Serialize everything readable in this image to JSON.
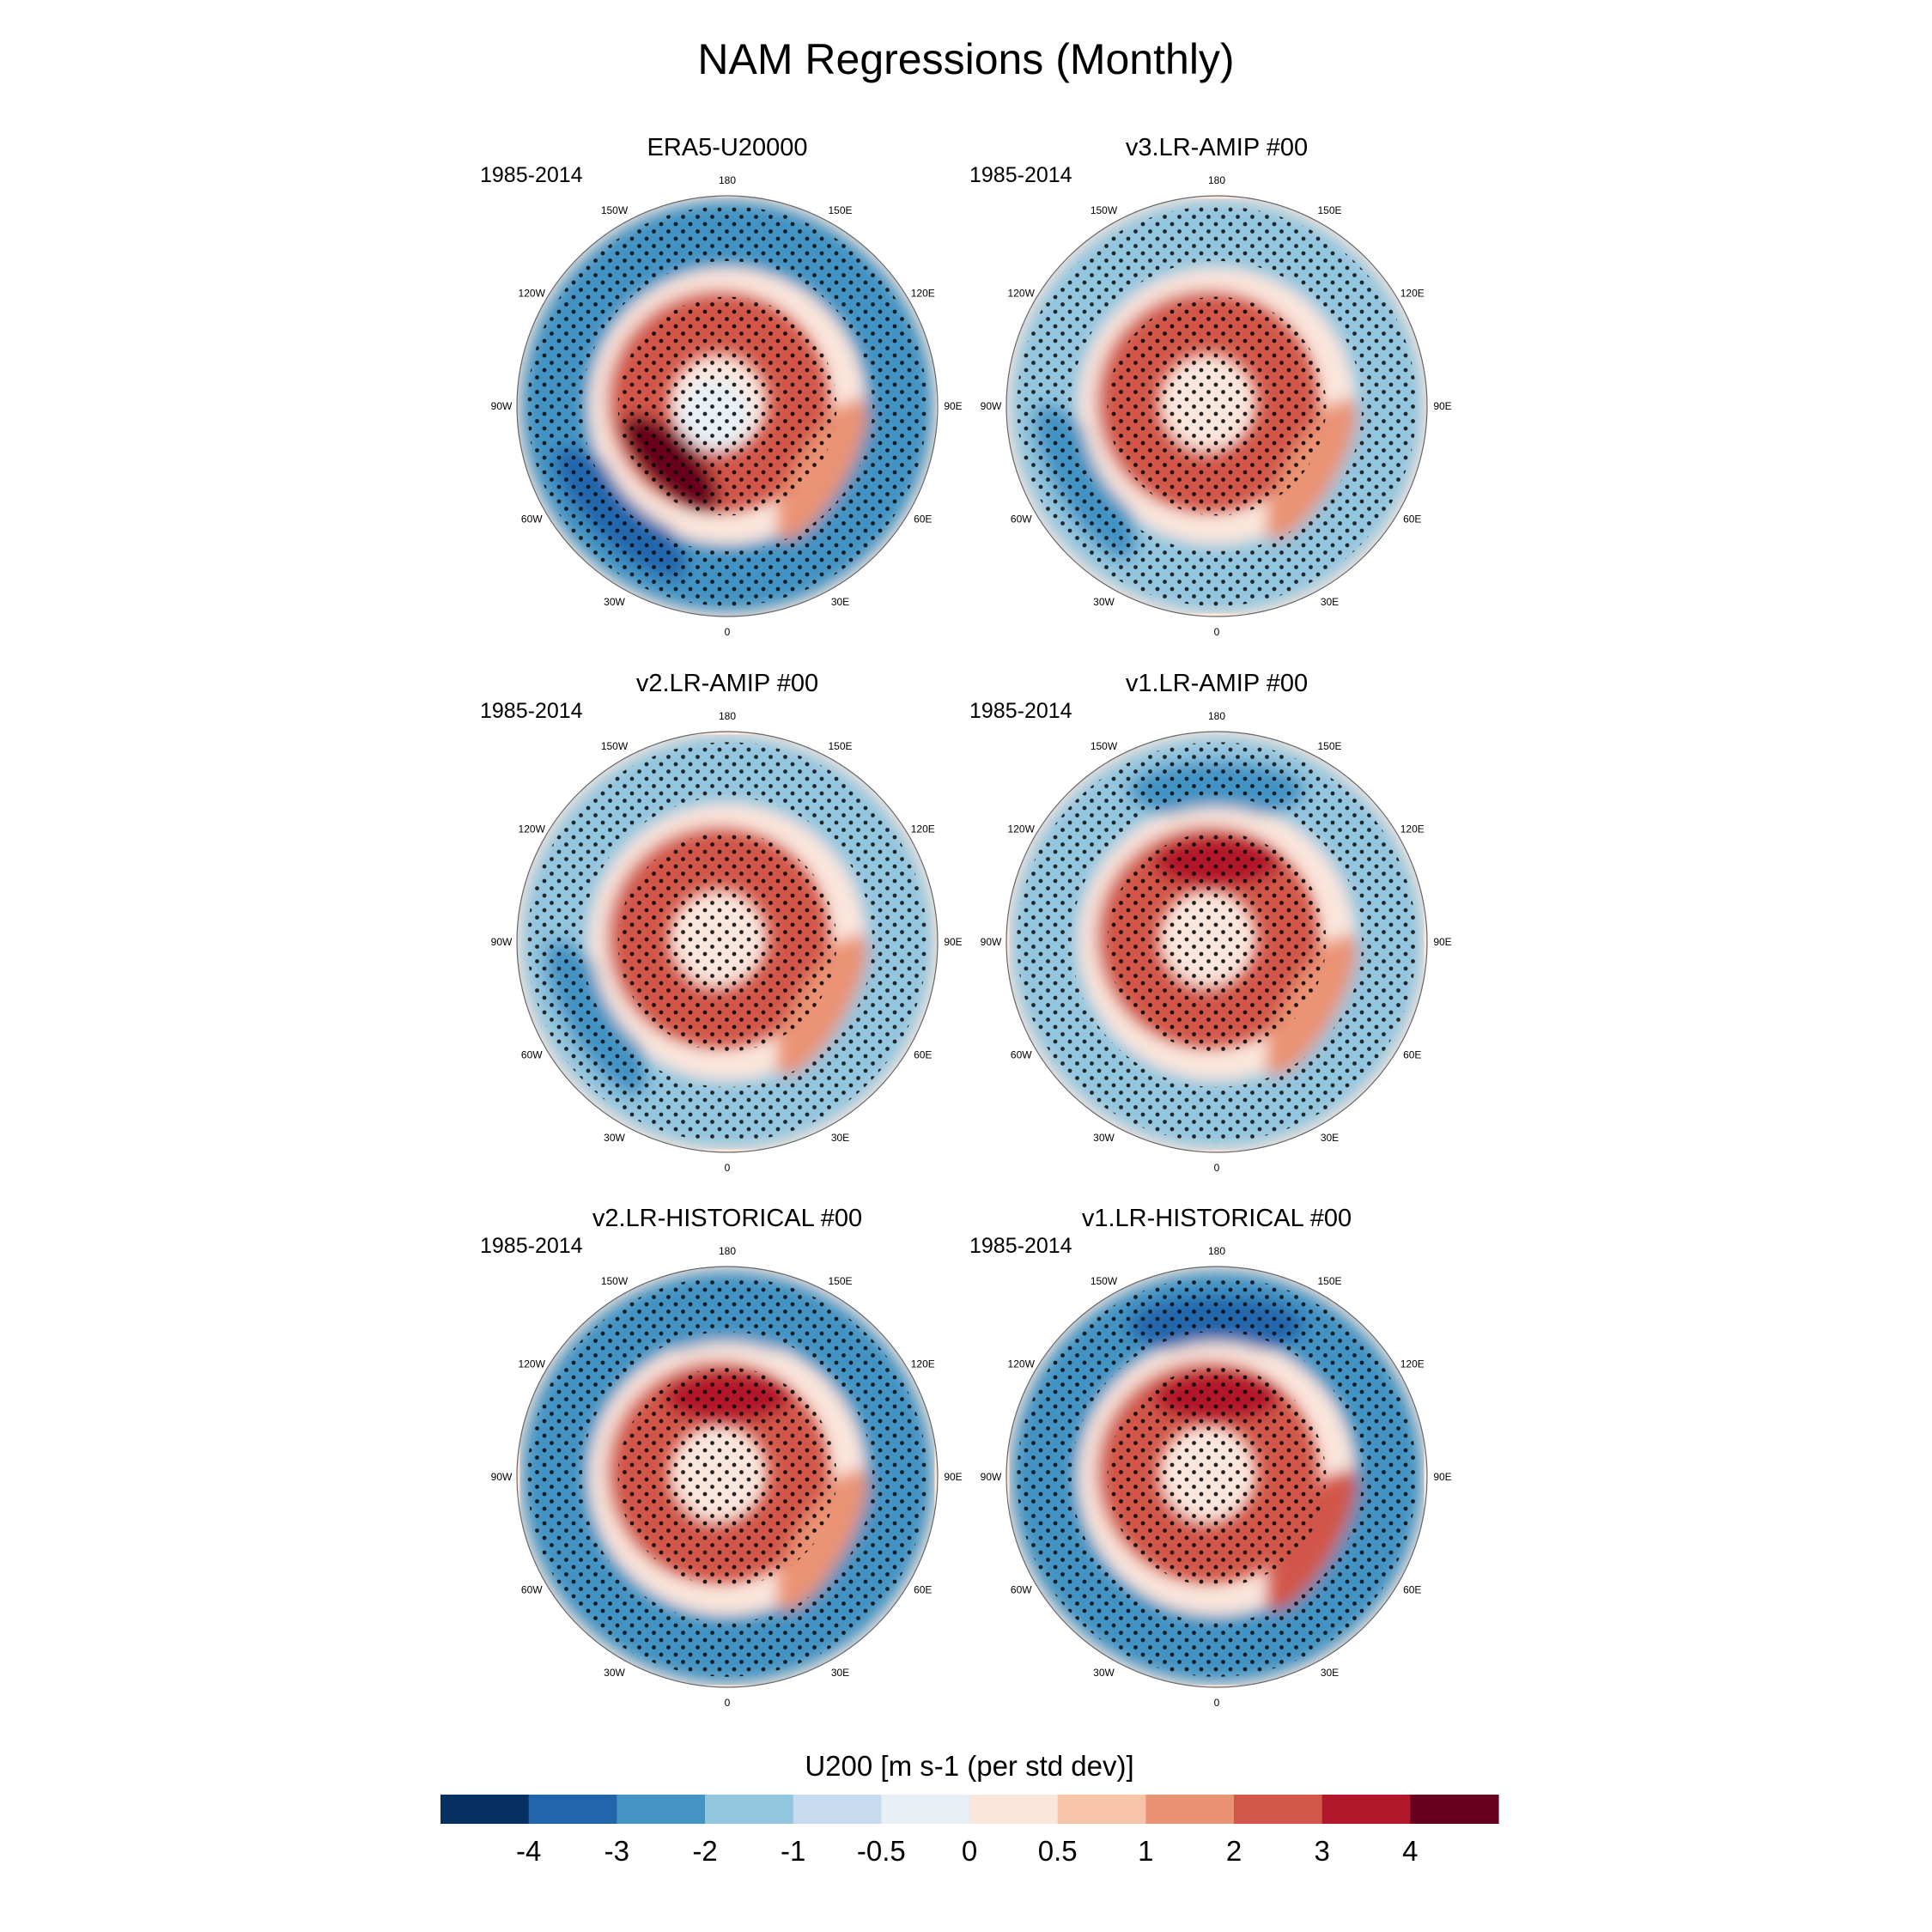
{
  "title": "NAM Regressions (Monthly)",
  "chart_data": {
    "type": "heatmap",
    "title": "NAM Regressions (Monthly)",
    "projection": "north polar stereographic",
    "stippling": "dots mark statistically significant regions",
    "panels": [
      {
        "title": "ERA5-U20000",
        "period": "1985-2014",
        "features": {
          "ring": 2.5,
          "ring_peak": 4.2,
          "ring_peak_dir": "60W-30W",
          "pole": -0.5,
          "outer_band": -2.5,
          "outer_peak": -3.2,
          "atlantic_tail": 1.5
        }
      },
      {
        "title": "v3.LR-AMIP  #00",
        "period": "1985-2014",
        "features": {
          "ring": 2.0,
          "ring_peak": 2.8,
          "ring_peak_dir": "60W",
          "pole": 0.3,
          "outer_band": -2.0,
          "outer_peak": -3.0,
          "atlantic_tail": 1.5
        }
      },
      {
        "title": "v2.LR-AMIP  #00",
        "period": "1985-2014",
        "features": {
          "ring": 2.0,
          "ring_peak": 2.5,
          "ring_peak_dir": "60W",
          "pole": 0.3,
          "outer_band": -2.0,
          "outer_peak": -2.8,
          "atlantic_tail": 1.5
        }
      },
      {
        "title": "v1.LR-AMIP  #00",
        "period": "1985-2014",
        "features": {
          "ring": 2.0,
          "ring_peak": 3.2,
          "ring_peak_dir": "180",
          "pole": 0.3,
          "outer_band": -2.0,
          "outer_peak": -2.8,
          "atlantic_tail": 1.5
        }
      },
      {
        "title": "v2.LR-HISTORICAL  #00",
        "period": "1985-2014",
        "features": {
          "ring": 2.0,
          "ring_peak": 3.3,
          "ring_peak_dir": "180",
          "pole": 0.3,
          "outer_band": -2.5,
          "outer_peak": -3.0,
          "atlantic_tail": 1.5
        }
      },
      {
        "title": "v1.LR-HISTORICAL  #00",
        "period": "1985-2014",
        "features": {
          "ring": 2.0,
          "ring_peak": 3.3,
          "ring_peak_dir": "180",
          "pole": 0.3,
          "outer_band": -2.5,
          "outer_peak": -4.0,
          "atlantic_tail": 2.5
        }
      }
    ],
    "longitude_labels": [
      "180",
      "150E",
      "120E",
      "90E",
      "60E",
      "30E",
      "0",
      "30W",
      "60W",
      "90W",
      "120W",
      "150W"
    ],
    "colorbar": {
      "label": "U200 [m s-1 (per std dev)]",
      "tick_labels": [
        "-4",
        "-3",
        "-2",
        "-1",
        "-0.5",
        "0",
        "0.5",
        "1",
        "2",
        "3",
        "4"
      ],
      "levels": [
        -4,
        -3,
        -2,
        -1,
        -0.5,
        0,
        0.5,
        1,
        2,
        3,
        4
      ],
      "colors": [
        "#053061",
        "#2166ac",
        "#4393c3",
        "#92c5de",
        "#c6dbef",
        "#e8eff5",
        "#fbe6dc",
        "#f7c4a8",
        "#ea9374",
        "#d15748",
        "#b2182b",
        "#67001f"
      ]
    }
  }
}
